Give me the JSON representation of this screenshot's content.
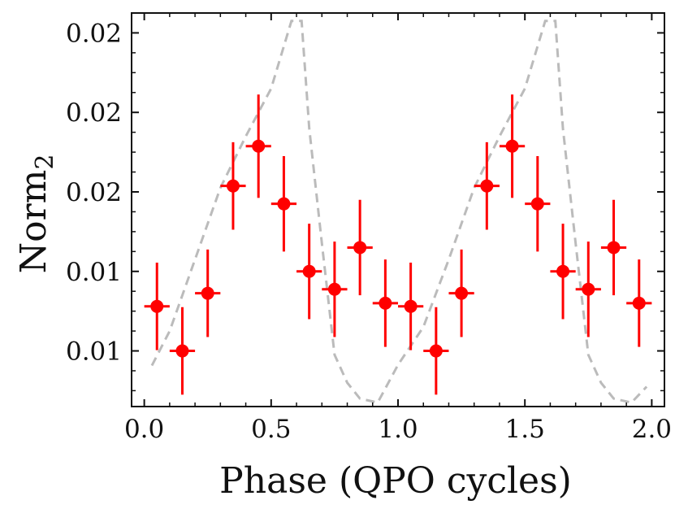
{
  "chart_data": {
    "type": "scatter",
    "title": "",
    "xlabel": "Phase (QPO cycles)",
    "ylabel": "Norm",
    "ylabel_subscript": "2",
    "xlim": [
      -0.05,
      2.05
    ],
    "ylim": [
      0.0096,
      0.0195
    ],
    "x_ticks": [
      0.0,
      0.5,
      1.0,
      1.5,
      2.0
    ],
    "x_tick_labels": [
      "0.0",
      "0.5",
      "1.0",
      "1.5",
      "2.0"
    ],
    "y_ticks": [
      0.011,
      0.013,
      0.015,
      0.017,
      0.019
    ],
    "y_tick_labels": [
      "0.01",
      "0.01",
      "0.02",
      "0.02",
      "0.02"
    ],
    "grid": false,
    "series": [
      {
        "name": "data",
        "style": "points-with-errorbars",
        "color": "#ff0000",
        "x": [
          0.05,
          0.15,
          0.25,
          0.35,
          0.45,
          0.55,
          0.65,
          0.75,
          0.85,
          0.95,
          1.05,
          1.15,
          1.25,
          1.35,
          1.45,
          1.55,
          1.65,
          1.75,
          1.85,
          1.95
        ],
        "y": [
          0.01212,
          0.011,
          0.01245,
          0.01515,
          0.01615,
          0.0147,
          0.013,
          0.01255,
          0.0136,
          0.0122,
          0.01212,
          0.011,
          0.01245,
          0.01515,
          0.01615,
          0.0147,
          0.013,
          0.01255,
          0.0136,
          0.0122
        ],
        "xerr": 0.05,
        "yerr": [
          0.0011,
          0.0011,
          0.0011,
          0.0011,
          0.0013,
          0.0012,
          0.0012,
          0.0012,
          0.0012,
          0.0011,
          0.0011,
          0.0011,
          0.0011,
          0.0011,
          0.0013,
          0.0012,
          0.0012,
          0.0012,
          0.0012,
          0.0011
        ]
      },
      {
        "name": "model",
        "style": "dashed-line",
        "color": "#bbbbbb",
        "x": [
          0.03,
          0.1,
          0.2,
          0.3,
          0.4,
          0.5,
          0.58,
          0.62,
          0.65,
          0.7,
          0.75,
          0.8,
          0.85,
          0.92,
          1.0,
          1.1,
          1.2,
          1.3,
          1.4,
          1.5,
          1.58,
          1.62,
          1.65,
          1.7,
          1.75,
          1.8,
          1.85,
          1.92,
          1.98
        ],
        "y": [
          0.01063,
          0.0115,
          0.0133,
          0.0151,
          0.0164,
          0.0176,
          0.0193,
          0.0193,
          0.0166,
          0.0137,
          0.0109,
          0.0102,
          0.0098,
          0.0097,
          0.01065,
          0.0116,
          0.0133,
          0.0151,
          0.0164,
          0.0176,
          0.0193,
          0.0193,
          0.0166,
          0.0137,
          0.0109,
          0.0102,
          0.0098,
          0.0097,
          0.0101
        ]
      }
    ]
  }
}
